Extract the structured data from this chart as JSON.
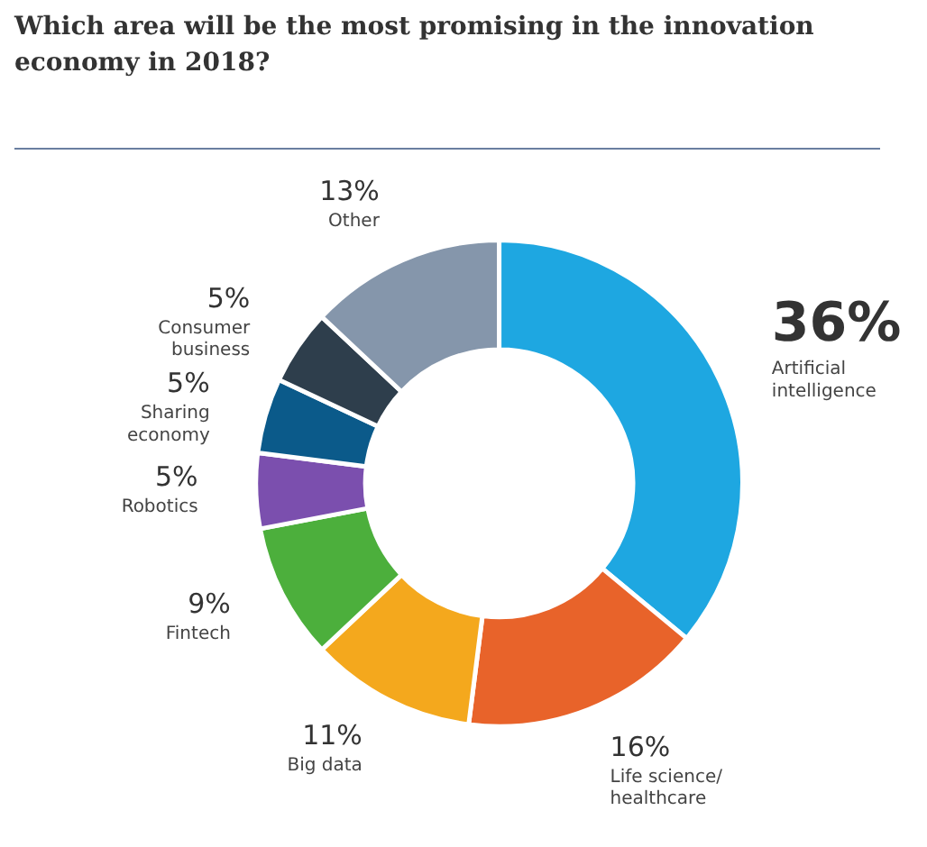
{
  "chart_data": {
    "type": "donut",
    "title": "Which area will be the most promising in the innovation economy in 2018?",
    "categories": [
      "Artificial intelligence",
      "Life science/ healthcare",
      "Big data",
      "Fintech",
      "Robotics",
      "Sharing economy",
      "Consumer business",
      "Other"
    ],
    "values": [
      36,
      16,
      11,
      9,
      5,
      5,
      5,
      13
    ],
    "colors": [
      "#1ea7e1",
      "#e8632a",
      "#f4a81d",
      "#4caf3c",
      "#7b4fae",
      "#0b5a8a",
      "#2e3e4c",
      "#8596ab"
    ],
    "value_labels": [
      "36%",
      "16%",
      "11%",
      "9%",
      "5%",
      "5%",
      "5%",
      "13%"
    ]
  }
}
